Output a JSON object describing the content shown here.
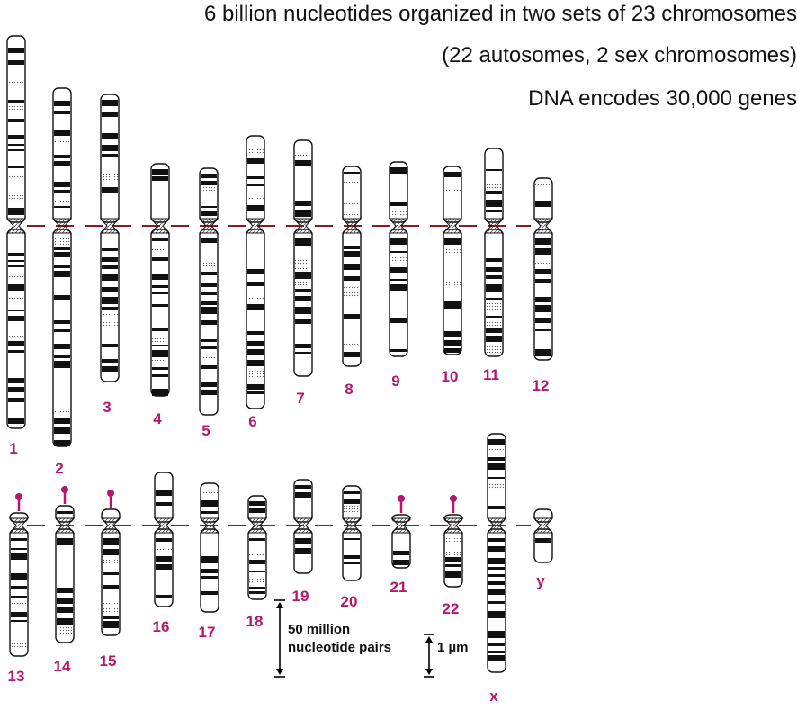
{
  "headlines": [
    "6 billion nucleotides organized in two sets of 23 chromosomes",
    "(22 autosomes, 2 sex chromosomes)",
    "DNA encodes 30,000 genes"
  ],
  "chromosomes": [
    {
      "label": "1",
      "row": 1
    },
    {
      "label": "2",
      "row": 1
    },
    {
      "label": "3",
      "row": 1
    },
    {
      "label": "4",
      "row": 1
    },
    {
      "label": "5",
      "row": 1
    },
    {
      "label": "6",
      "row": 1
    },
    {
      "label": "7",
      "row": 1
    },
    {
      "label": "8",
      "row": 1
    },
    {
      "label": "9",
      "row": 1
    },
    {
      "label": "10",
      "row": 1
    },
    {
      "label": "11",
      "row": 1
    },
    {
      "label": "12",
      "row": 1
    },
    {
      "label": "13",
      "row": 2,
      "satellite": true
    },
    {
      "label": "14",
      "row": 2,
      "satellite": true
    },
    {
      "label": "15",
      "row": 2,
      "satellite": true
    },
    {
      "label": "16",
      "row": 2
    },
    {
      "label": "17",
      "row": 2
    },
    {
      "label": "18",
      "row": 2
    },
    {
      "label": "19",
      "row": 2
    },
    {
      "label": "20",
      "row": 2
    },
    {
      "label": "21",
      "row": 2,
      "satellite": true
    },
    {
      "label": "22",
      "row": 2,
      "satellite": true
    },
    {
      "label": "x",
      "row": 2
    },
    {
      "label": "y",
      "row": 2
    }
  ],
  "scale_bars": {
    "nucleotides_line1": "50 million",
    "nucleotides_line2": "nucleotide pairs",
    "length": "1 µm"
  },
  "colors": {
    "label": "#b5176e",
    "centromere_line": "#8b1a1a",
    "band": "#111111",
    "outline": "#111111"
  }
}
